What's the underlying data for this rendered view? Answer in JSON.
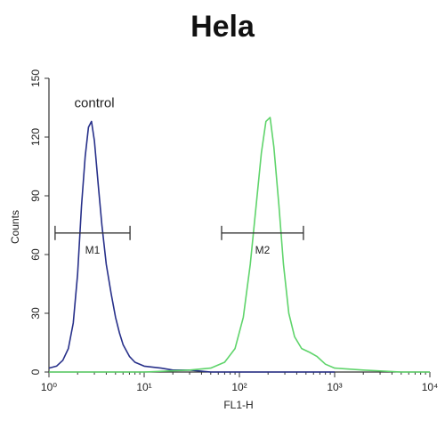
{
  "chart_data": {
    "type": "line",
    "title": "Hela",
    "xlabel": "FL1-H",
    "ylabel": "Counts",
    "xscale": "log",
    "xlim": [
      1,
      10000
    ],
    "ylim": [
      0,
      150
    ],
    "xticks": [
      {
        "value": 1,
        "label": "10⁰"
      },
      {
        "value": 10,
        "label": "10¹"
      },
      {
        "value": 100,
        "label": "10²"
      },
      {
        "value": 1000,
        "label": "10³"
      },
      {
        "value": 10000,
        "label": "10⁴"
      }
    ],
    "yticks": [
      0,
      30,
      60,
      90,
      120,
      150
    ],
    "annotations": [
      {
        "text": "control",
        "x": 3,
        "y": 137
      }
    ],
    "markers": [
      {
        "label": "M1",
        "x": [
          1.16,
          7.1
        ],
        "y": 71
      },
      {
        "label": "M2",
        "x": [
          65,
          470
        ],
        "y": 71
      }
    ],
    "series": [
      {
        "color": "#27308a",
        "x": [
          1,
          1.2,
          1.4,
          1.6,
          1.8,
          2.0,
          2.2,
          2.4,
          2.6,
          2.8,
          3.0,
          3.3,
          3.6,
          4.0,
          4.5,
          5,
          5.5,
          6,
          7,
          8,
          10,
          15,
          20,
          30,
          50,
          100,
          300,
          1000
        ],
        "values": [
          2,
          3,
          6,
          12,
          25,
          50,
          85,
          110,
          125,
          128,
          118,
          95,
          75,
          55,
          40,
          28,
          20,
          14,
          8,
          5,
          3,
          2,
          1,
          1,
          0,
          0,
          0,
          0
        ]
      },
      {
        "color": "#5fd46b",
        "x": [
          1,
          10,
          30,
          50,
          70,
          90,
          110,
          130,
          150,
          170,
          190,
          210,
          230,
          260,
          290,
          330,
          380,
          450,
          550,
          650,
          800,
          1000,
          2000,
          5000,
          10000
        ],
        "values": [
          0,
          0,
          1,
          2,
          5,
          12,
          28,
          55,
          85,
          112,
          128,
          130,
          115,
          85,
          55,
          30,
          18,
          12,
          10,
          8,
          4,
          2,
          1,
          0,
          0
        ]
      }
    ]
  }
}
